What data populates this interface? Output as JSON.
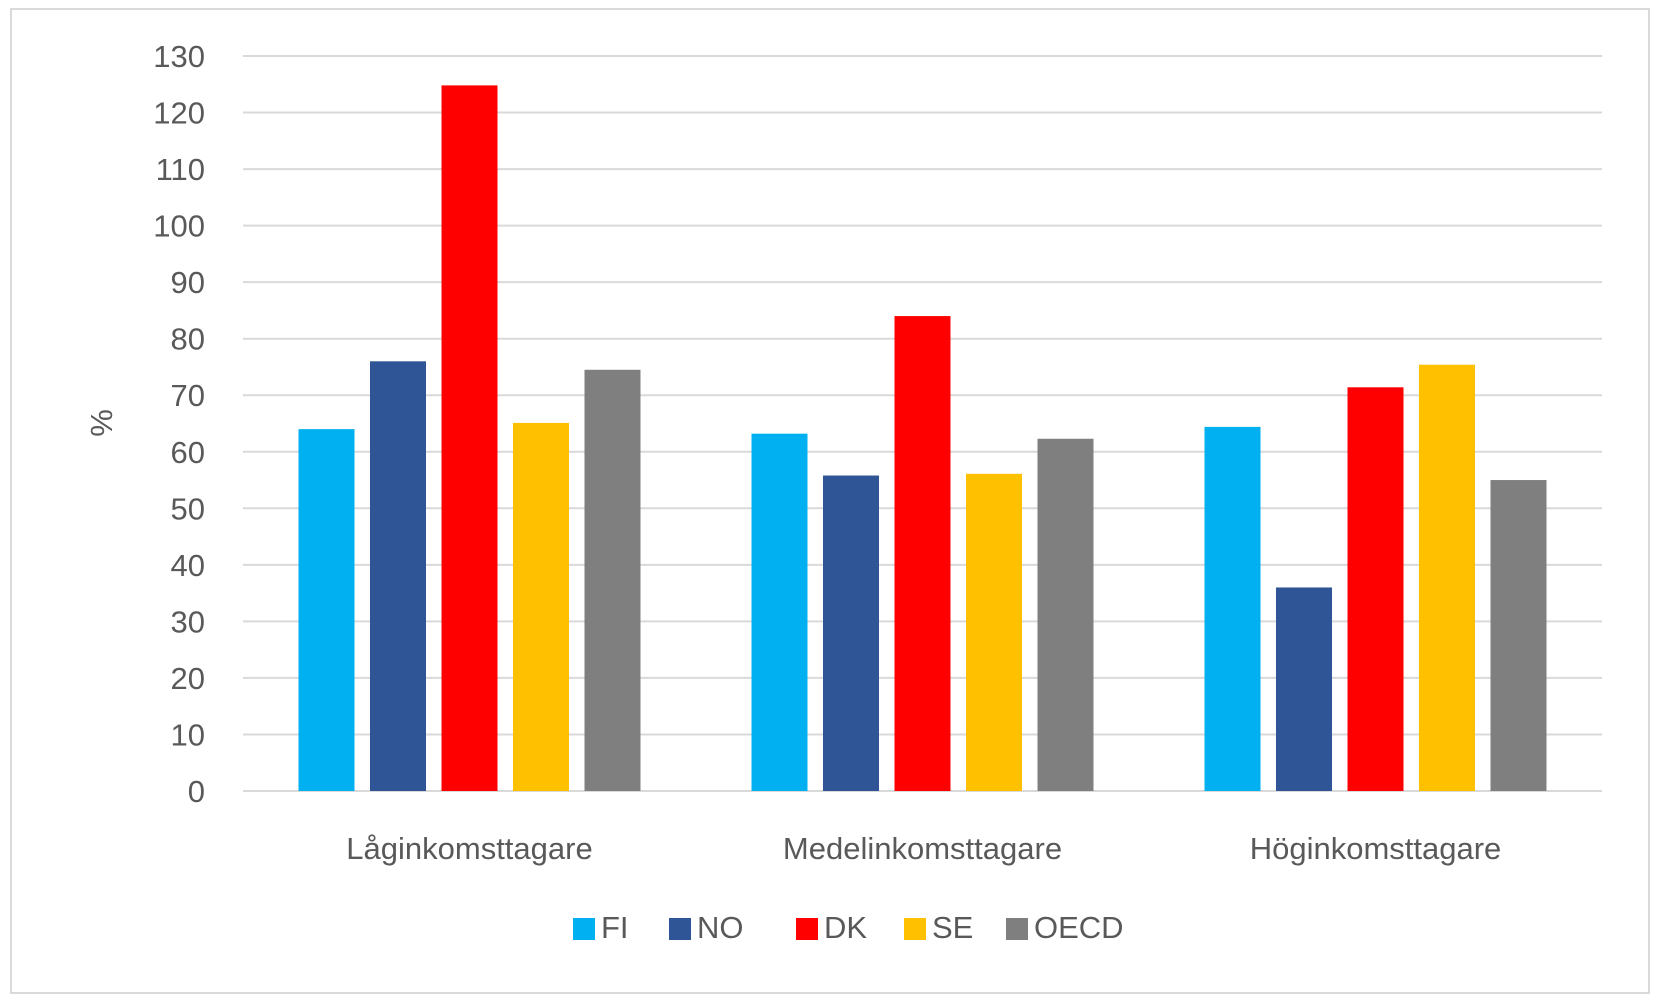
{
  "chart_data": {
    "type": "bar",
    "categories": [
      "Låginkomsttagare",
      "Medelinkomsttagare",
      "Höginkomsttagare"
    ],
    "series": [
      {
        "name": "FI",
        "color": "#00b0f0",
        "values": [
          64,
          63.2,
          64.4
        ]
      },
      {
        "name": "NO",
        "color": "#2f5597",
        "values": [
          76,
          55.8,
          36
        ]
      },
      {
        "name": "DK",
        "color": "#ff0000",
        "values": [
          124.8,
          84,
          71.4
        ]
      },
      {
        "name": "SE",
        "color": "#ffc000",
        "values": [
          65.1,
          56.1,
          75.4
        ]
      },
      {
        "name": "OECD",
        "color": "#7f7f7f",
        "values": [
          74.5,
          62.3,
          55
        ]
      }
    ],
    "ylabel": "%",
    "xlabel": "",
    "title": "",
    "ylim": [
      0,
      130
    ],
    "yticks": [
      0,
      10,
      20,
      30,
      40,
      50,
      60,
      70,
      80,
      90,
      100,
      110,
      120,
      130
    ],
    "grid": true,
    "legend_position": "bottom",
    "gridline_color": "#d9d9d9"
  }
}
